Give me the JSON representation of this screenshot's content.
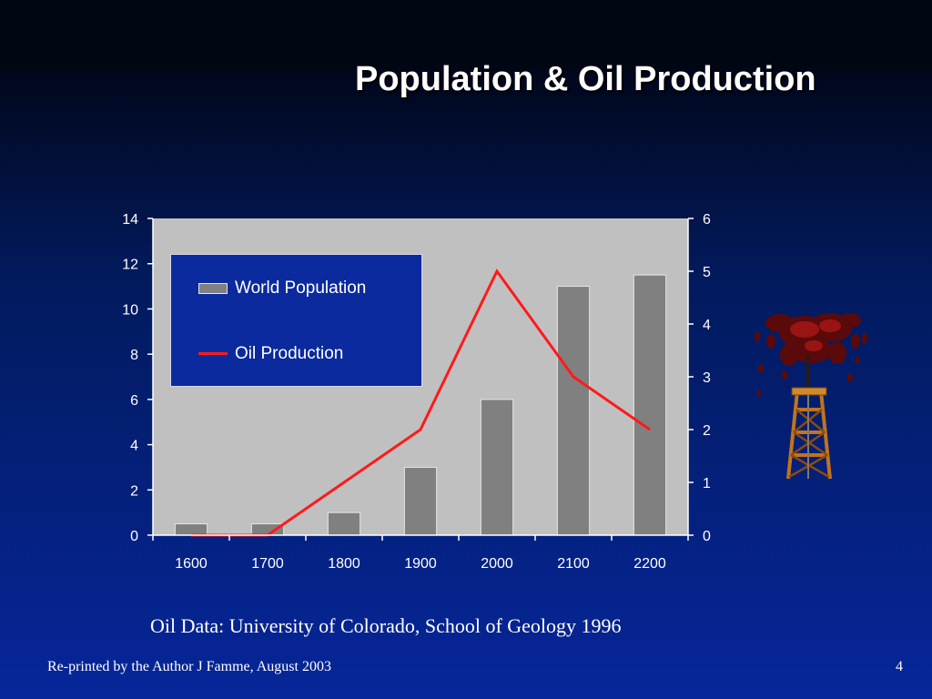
{
  "slide": {
    "title": "Population & Oil Production",
    "source": "Oil Data: University of Colorado, School of Geology 1996",
    "footer": "Re-printed by the Author J Famme, August 2003",
    "page_number": "4",
    "oil_rig_icon": "oil-derrick-icon"
  },
  "colors": {
    "plot_bg": "#c0c0c0",
    "bar": "#808080",
    "line": "#ff1a1a",
    "legend_bg": "#0a2a9e"
  },
  "chart_data": {
    "type": "bar",
    "title": "",
    "xlabel": "",
    "ylabel": "",
    "y2label": "",
    "categories": [
      "1600",
      "1700",
      "1800",
      "1900",
      "2000",
      "2100",
      "2200"
    ],
    "series": [
      {
        "name": "World Population",
        "type": "bar",
        "axis": "left",
        "values": [
          0.5,
          0.5,
          1,
          3,
          6,
          11,
          11.5
        ]
      },
      {
        "name": "Oil Production",
        "type": "line",
        "axis": "right",
        "values": [
          0,
          0,
          1,
          2,
          5,
          3,
          2
        ]
      }
    ],
    "ylim": [
      0,
      14
    ],
    "y_ticks": [
      0,
      2,
      4,
      6,
      8,
      10,
      12,
      14
    ],
    "y2lim": [
      0,
      6
    ],
    "y2_ticks": [
      0,
      1,
      2,
      3,
      4,
      5,
      6
    ],
    "grid": false,
    "legend_position": "top-left"
  }
}
